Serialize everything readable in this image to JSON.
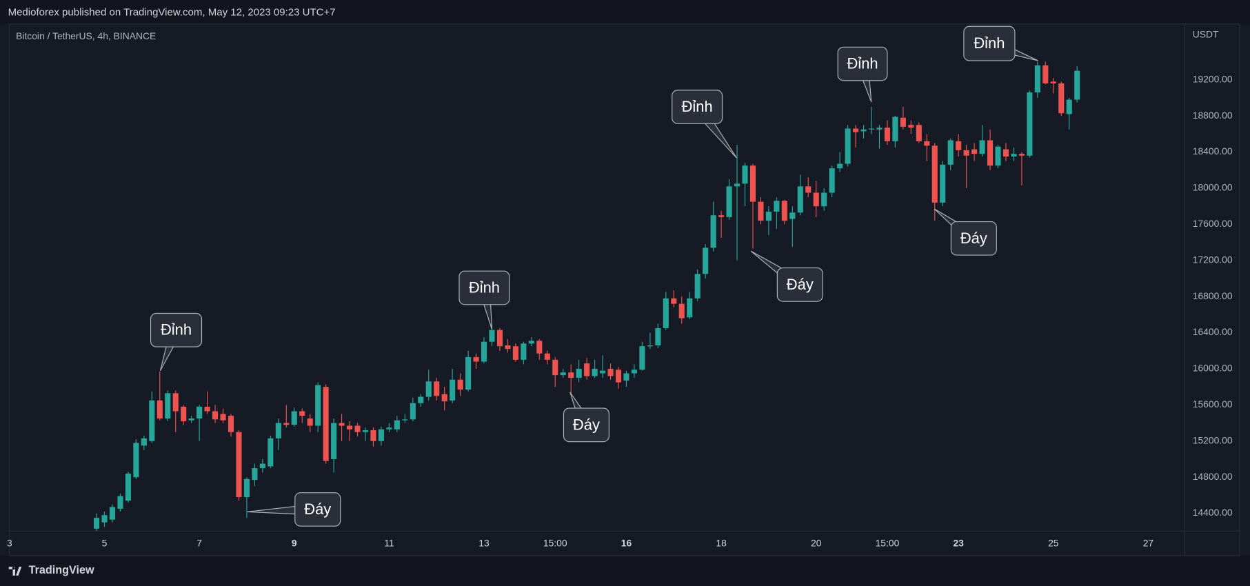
{
  "header": "Medioforex published on TradingView.com, May 12, 2023 09:23 UTC+7",
  "symbol": "Bitcoin / TetherUS, 4h, BINANCE",
  "footer": "TradingView",
  "chart_data": {
    "type": "candlestick",
    "y_label": "USDT",
    "up_color": "#26a69a",
    "down_color": "#ef5350",
    "grid": false,
    "ylim": [
      14205,
      19818
    ],
    "yticks": [
      {
        "value": 14400,
        "label": "14400.00"
      },
      {
        "value": 14800,
        "label": "14800.00"
      },
      {
        "value": 15200,
        "label": "15200.00"
      },
      {
        "value": 15600,
        "label": "15600.00"
      },
      {
        "value": 16000,
        "label": "16000.00"
      },
      {
        "value": 16400,
        "label": "16400.00"
      },
      {
        "value": 16800,
        "label": "16800.00"
      },
      {
        "value": 17200,
        "label": "17200.00"
      },
      {
        "value": 17600,
        "label": "17600.00"
      },
      {
        "value": 18000,
        "label": "18000.00"
      },
      {
        "value": 18400,
        "label": "18400.00"
      },
      {
        "value": 18800,
        "label": "18800.00"
      },
      {
        "value": 19200,
        "label": "19200.00"
      }
    ],
    "xlim": [
      -11,
      137.6
    ],
    "xticks": [
      {
        "value": -11,
        "label": "3"
      },
      {
        "value": 1,
        "label": "5"
      },
      {
        "value": 13,
        "label": "7"
      },
      {
        "value": 25,
        "label": "9"
      },
      {
        "value": 37,
        "label": "11"
      },
      {
        "value": 49,
        "label": "13"
      },
      {
        "value": 58,
        "label": "15:00"
      },
      {
        "value": 67,
        "label": "16"
      },
      {
        "value": 79,
        "label": "18"
      },
      {
        "value": 91,
        "label": "20"
      },
      {
        "value": 100,
        "label": "15:00"
      },
      {
        "value": 109,
        "label": "23"
      },
      {
        "value": 121,
        "label": "25"
      },
      {
        "value": 133,
        "label": "27"
      }
    ],
    "open": [
      14230,
      14300,
      14330,
      14450,
      14540,
      14800,
      15150,
      15200,
      15650,
      15450,
      15730,
      15580,
      15430,
      15450,
      15580,
      15530,
      15500,
      15480,
      15300,
      14580,
      14770,
      14900,
      14920,
      15230,
      15400,
      15380,
      15530,
      15450,
      15370,
      15800,
      15000,
      15400,
      15370,
      15370,
      15300,
      15320,
      15200,
      15330,
      15330,
      15430,
      15440,
      15620,
      15690,
      15860,
      15720,
      15650,
      15880,
      15770,
      16130,
      16080,
      16300,
      16430,
      16260,
      16250,
      16100,
      16280,
      16310,
      16170,
      16100,
      15930,
      15960,
      15900,
      16060,
      15920,
      15950,
      16000,
      15990,
      15870,
      15950,
      15990,
      16250,
      16260,
      16450,
      16780,
      16720,
      16570,
      16780,
      17050,
      17340,
      17700,
      17680,
      18020,
      18050,
      18250,
      17850,
      17640,
      17740,
      17860,
      17660,
      17730,
      18020,
      17950,
      17800,
      17950,
      18220,
      18270,
      18660,
      18630,
      18650,
      18650,
      18670,
      18520,
      18780,
      18700,
      18700,
      18520,
      18470,
      17840,
      18260,
      18520,
      18420,
      18430,
      18380,
      18530,
      18250,
      18430,
      18350,
      18380,
      18360,
      19060,
      19360,
      19180,
      19160,
      18820,
      18980
    ],
    "high": [
      14400,
      14420,
      14500,
      14620,
      14860,
      15220,
      15260,
      15750,
      15970,
      15760,
      15760,
      15600,
      15480,
      15600,
      15750,
      15600,
      15560,
      15500,
      15320,
      14800,
      14950,
      15000,
      15260,
      15450,
      15600,
      15570,
      15560,
      15500,
      15850,
      15830,
      15450,
      15500,
      15420,
      15400,
      15350,
      15350,
      15360,
      15400,
      15480,
      15500,
      15680,
      15720,
      15990,
      15900,
      15800,
      16000,
      15950,
      16200,
      16170,
      16350,
      16500,
      16450,
      16330,
      16280,
      16300,
      16350,
      16330,
      16200,
      16130,
      16000,
      16050,
      16100,
      16120,
      16100,
      16150,
      16060,
      16020,
      15980,
      16050,
      16300,
      16400,
      16500,
      16850,
      16870,
      16800,
      16850,
      17100,
      17380,
      17850,
      17750,
      18100,
      18480,
      18280,
      18270,
      17900,
      17800,
      17900,
      17870,
      17800,
      18150,
      18120,
      18080,
      18000,
      18250,
      18400,
      18700,
      18700,
      18700,
      18900,
      18700,
      18750,
      18800,
      18900,
      18750,
      18730,
      18600,
      18500,
      18300,
      18550,
      18600,
      18480,
      18500,
      18700,
      18650,
      18480,
      18500,
      18450,
      18400,
      19080,
      19400,
      19400,
      19220,
      19180,
      19000,
      19350
    ],
    "low": [
      14205,
      14250,
      14300,
      14420,
      14520,
      14780,
      15100,
      15180,
      15430,
      15420,
      15300,
      15380,
      15400,
      15200,
      15500,
      15400,
      15400,
      15250,
      14540,
      14350,
      14700,
      14850,
      14900,
      15100,
      15350,
      15360,
      15400,
      15300,
      15300,
      14950,
      14850,
      15200,
      15200,
      15250,
      15200,
      15140,
      15150,
      15300,
      15300,
      15400,
      15420,
      15580,
      15650,
      15650,
      15540,
      15620,
      15700,
      15750,
      16000,
      16060,
      16250,
      16200,
      16180,
      16080,
      16050,
      16250,
      16100,
      16050,
      15800,
      15900,
      15730,
      15850,
      15880,
      15900,
      15900,
      15880,
      15780,
      15800,
      15900,
      15980,
      16220,
      16230,
      16430,
      16680,
      16500,
      16550,
      16750,
      17000,
      17300,
      17450,
      17650,
      17200,
      17800,
      17330,
      17600,
      17480,
      17550,
      17600,
      17350,
      17700,
      17900,
      17680,
      17750,
      17900,
      18180,
      18240,
      18450,
      18550,
      18600,
      18440,
      18480,
      18450,
      18650,
      18600,
      18500,
      18300,
      17640,
      17800,
      18200,
      18350,
      18000,
      18300,
      18350,
      18200,
      18220,
      18300,
      18300,
      18030,
      18340,
      19000,
      19150,
      19050,
      18800,
      18650,
      18950
    ],
    "close": [
      14350,
      14380,
      14470,
      14590,
      14840,
      15180,
      15230,
      15650,
      15450,
      15730,
      15530,
      15420,
      15450,
      15580,
      15530,
      15440,
      15430,
      15300,
      14580,
      14780,
      14900,
      14950,
      15230,
      15400,
      15380,
      15530,
      15480,
      15370,
      15820,
      14980,
      15400,
      15370,
      15330,
      15300,
      15320,
      15200,
      15330,
      15350,
      15430,
      15440,
      15620,
      15690,
      15860,
      15700,
      15640,
      15880,
      15770,
      16130,
      16080,
      16300,
      16430,
      16250,
      16220,
      16100,
      16280,
      16310,
      16170,
      16100,
      15930,
      15960,
      15900,
      16000,
      15920,
      16000,
      15980,
      15920,
      15850,
      15950,
      15990,
      16250,
      16260,
      16450,
      16780,
      16720,
      16560,
      16780,
      17050,
      17340,
      17700,
      17680,
      18020,
      18050,
      18250,
      17850,
      17640,
      17740,
      17860,
      17640,
      17730,
      18020,
      17950,
      17800,
      17950,
      18220,
      18270,
      18660,
      18620,
      18650,
      18660,
      18670,
      18520,
      18790,
      18680,
      18670,
      18520,
      18470,
      17840,
      18260,
      18530,
      18420,
      18360,
      18380,
      18530,
      18250,
      18460,
      18350,
      18380,
      18360,
      19060,
      19360,
      19160,
      19160,
      18830,
      18980,
      19300
    ],
    "annotations": [
      "Đỉnh",
      "Đáy",
      "Đỉnh",
      "Đáy",
      "Đỉnh",
      "Đáy",
      "Đỉnh",
      "Đáy",
      "Đỉnh"
    ]
  }
}
